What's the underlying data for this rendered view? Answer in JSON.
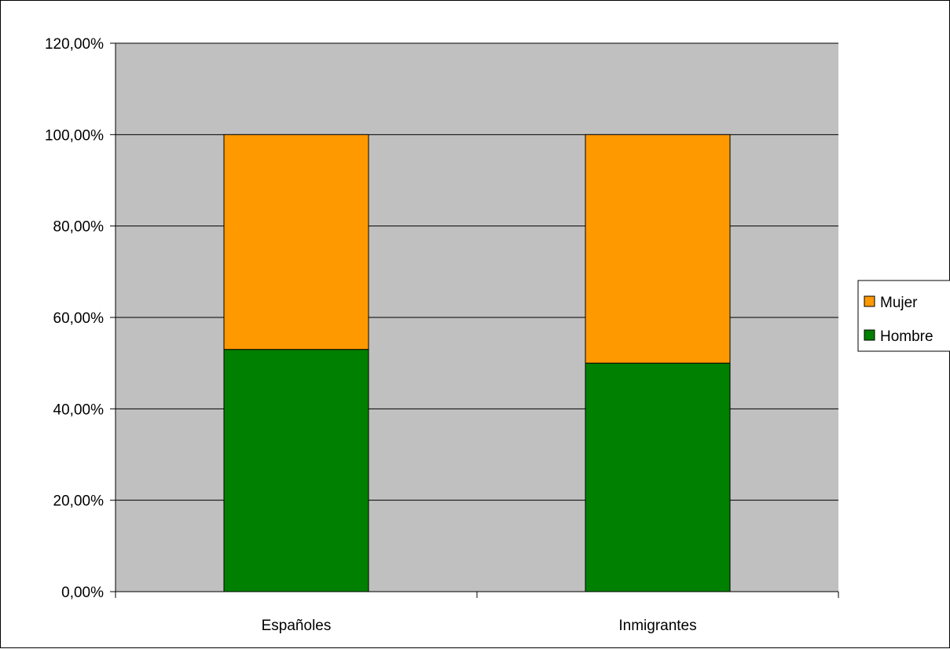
{
  "chart_data": {
    "type": "bar",
    "stacked": true,
    "categories": [
      "Españoles",
      "Inmigrantes"
    ],
    "series": [
      {
        "name": "Hombre",
        "values": [
          53.0,
          50.0
        ],
        "color": "#008000"
      },
      {
        "name": "Mujer",
        "values": [
          47.0,
          50.0
        ],
        "color": "#FF9900"
      }
    ],
    "ylim": [
      0,
      120
    ],
    "yticks": [
      0,
      20,
      40,
      60,
      80,
      100,
      120
    ],
    "ytick_labels": [
      "0,00%",
      "20,00%",
      "40,00%",
      "60,00%",
      "80,00%",
      "100,00%",
      "120,00%"
    ],
    "grid": true,
    "legend": {
      "position": "right",
      "order": [
        "Mujer",
        "Hombre"
      ]
    },
    "plot_background": "#C0C0C0",
    "title": "",
    "xlabel": "",
    "ylabel": ""
  }
}
